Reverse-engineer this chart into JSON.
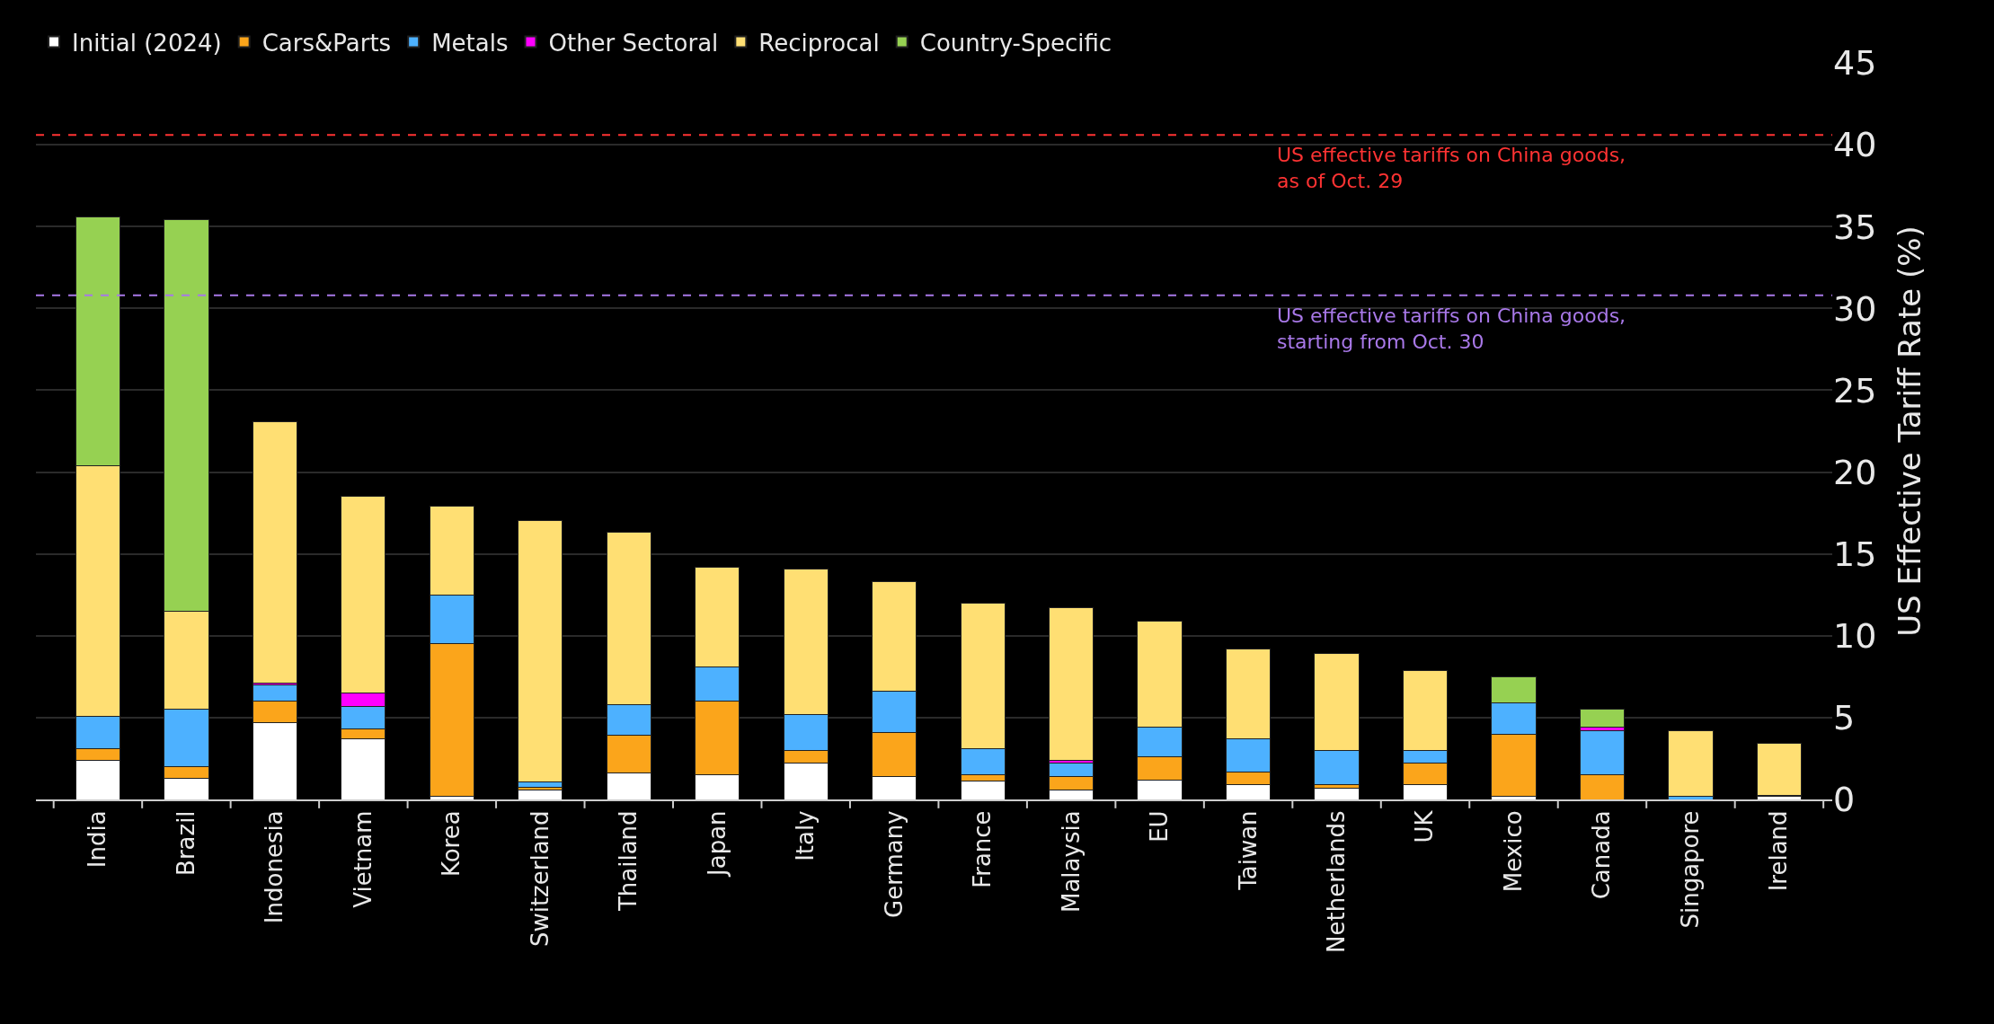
{
  "chart_data": {
    "type": "bar",
    "stacked": true,
    "ylabel": "US Effective Tariff Rate (%)",
    "categories": [
      "India",
      "Brazil",
      "Indonesia",
      "Vietnam",
      "Korea",
      "Switzerland",
      "Thailand",
      "Japan",
      "Italy",
      "Germany",
      "France",
      "Malaysia",
      "EU",
      "Taiwan",
      "Netherlands",
      "UK",
      "Mexico",
      "Canada",
      "Singapore",
      "Ireland"
    ],
    "series": [
      {
        "name": "Initial (2024)",
        "color": "#ffffff",
        "values": [
          2.4,
          1.3,
          4.7,
          3.7,
          0.2,
          0.6,
          1.6,
          1.5,
          2.2,
          1.4,
          1.1,
          0.6,
          1.2,
          0.9,
          0.7,
          0.9,
          0.2,
          null,
          null,
          0.2
        ]
      },
      {
        "name": "Cars&Parts",
        "color": "#fba51b",
        "values": [
          0.7,
          0.7,
          1.3,
          0.6,
          9.3,
          0.15,
          2.3,
          4.5,
          0.8,
          2.7,
          0.4,
          0.8,
          1.4,
          0.8,
          0.2,
          1.3,
          3.8,
          1.5,
          0,
          0
        ]
      },
      {
        "name": "Metals",
        "color": "#4db1ff",
        "values": [
          1.95,
          3.5,
          1.0,
          1.4,
          3.0,
          0.3,
          1.9,
          2.1,
          2.2,
          2.5,
          1.6,
          0.8,
          1.8,
          2.0,
          2.1,
          0.8,
          1.9,
          2.7,
          0.2,
          0.05
        ]
      },
      {
        "name": "Other Sectoral",
        "color": "#ff00ff",
        "values": [
          0,
          0,
          0.1,
          0.8,
          0,
          0,
          0,
          0,
          0,
          0,
          0,
          0.2,
          0,
          0,
          0,
          0,
          0,
          0.2,
          0,
          0
        ]
      },
      {
        "name": "Reciprocal",
        "color": "#ffdf73",
        "values": [
          15.35,
          6.0,
          16.0,
          12.0,
          5.4,
          16.0,
          10.5,
          6.1,
          8.9,
          6.7,
          8.9,
          9.3,
          6.5,
          5.5,
          5.9,
          4.9,
          0,
          0,
          4.0,
          3.2
        ]
      },
      {
        "name": "Country-Specific",
        "color": "#96d152",
        "values": [
          15.2,
          23.9,
          0,
          0,
          0,
          0,
          0,
          0,
          0,
          0,
          0,
          0,
          0,
          0,
          0,
          0,
          1.6,
          1.1,
          0,
          0
        ]
      }
    ],
    "ylim": [
      0,
      45
    ],
    "yticks": [
      0,
      5,
      10,
      15,
      20,
      25,
      30,
      35,
      40,
      45
    ],
    "grid": "y",
    "legend": "top left",
    "ref_lines": [
      {
        "axis": "y",
        "value": 40.6,
        "label": "US effective tariffs on China goods,\nas of Oct. 29",
        "color": "#ff3333",
        "line_style": "dashed"
      },
      {
        "axis": "y",
        "value": 30.8,
        "label": "US effective tariffs on China goods,\nstarting from Oct. 30",
        "color": "#a878e8",
        "line_style": "dashed"
      }
    ]
  }
}
